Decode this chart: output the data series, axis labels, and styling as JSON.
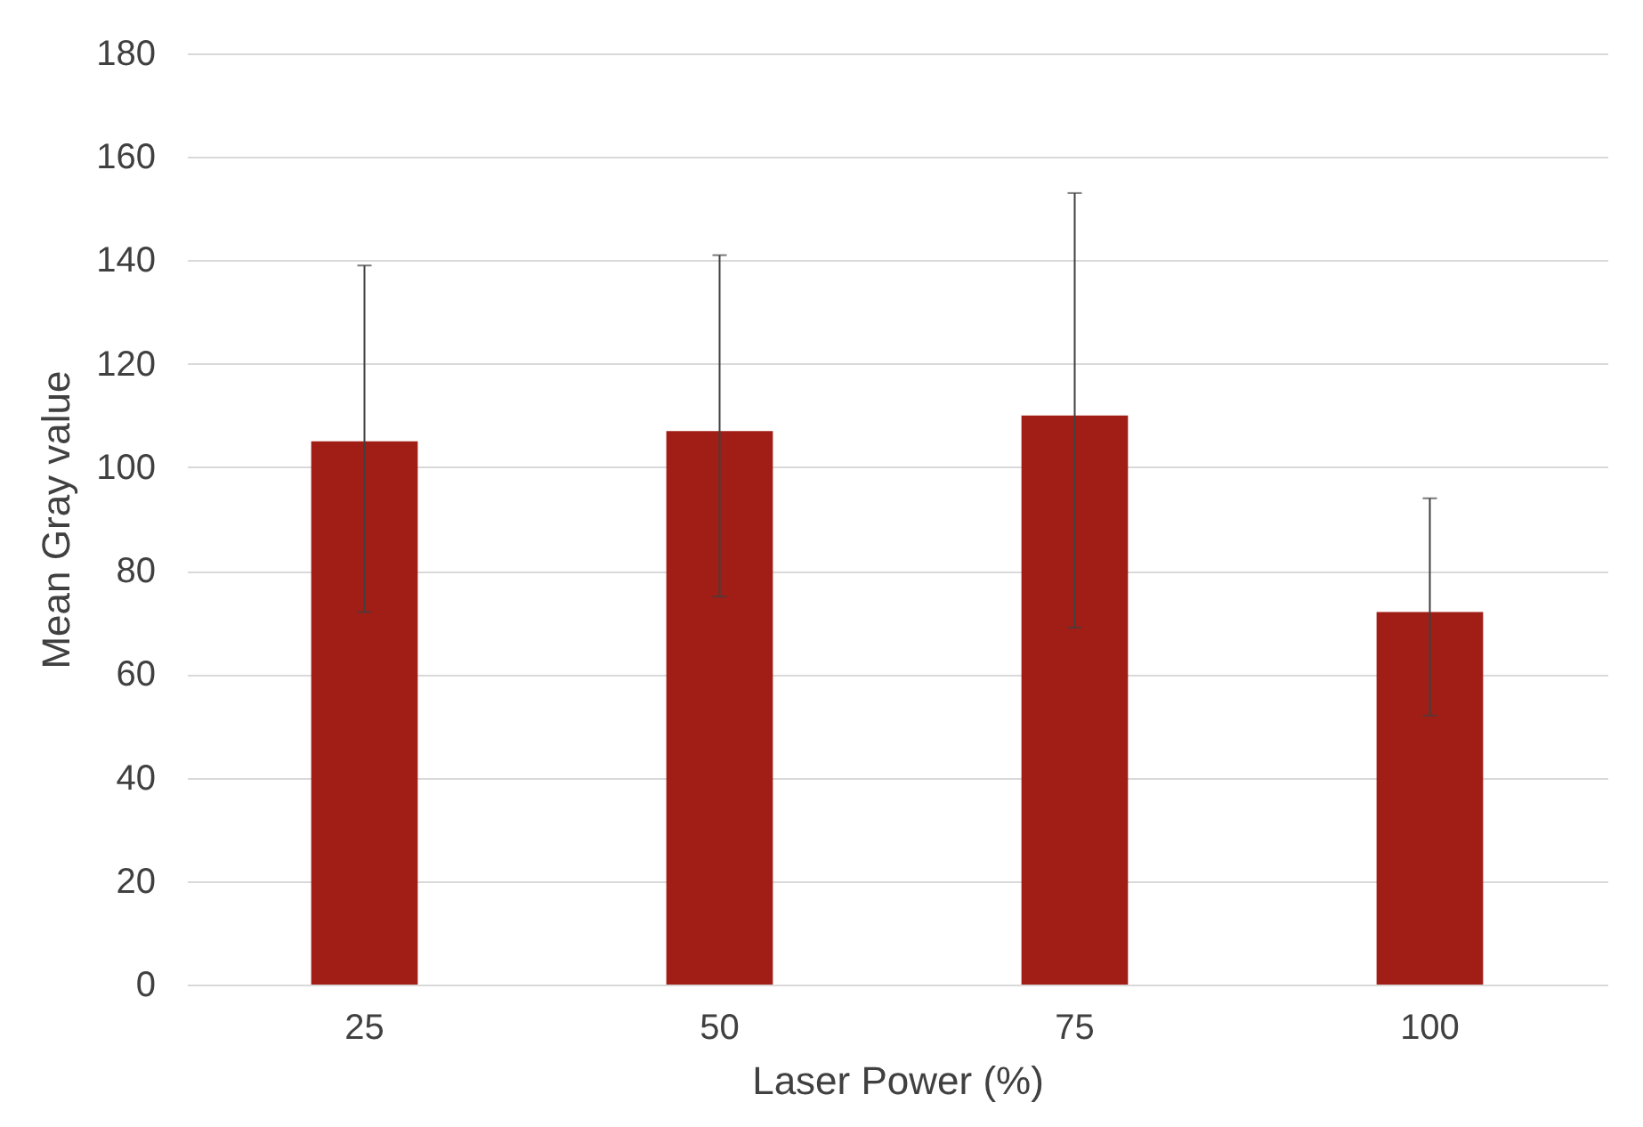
{
  "chart_data": {
    "type": "bar",
    "xlabel": "Laser Power (%)",
    "ylabel": "Mean Gray value",
    "categories": [
      "25",
      "50",
      "75",
      "100"
    ],
    "values": [
      105,
      107,
      110,
      72
    ],
    "errors": [
      [
        72,
        139
      ],
      [
        75,
        141
      ],
      [
        69,
        153
      ],
      [
        52,
        94
      ]
    ],
    "color": "#a01e16",
    "ylim": [
      0,
      180
    ],
    "yticks": [
      0,
      20,
      40,
      60,
      80,
      100,
      120,
      140,
      160,
      180
    ],
    "grid": "y"
  }
}
